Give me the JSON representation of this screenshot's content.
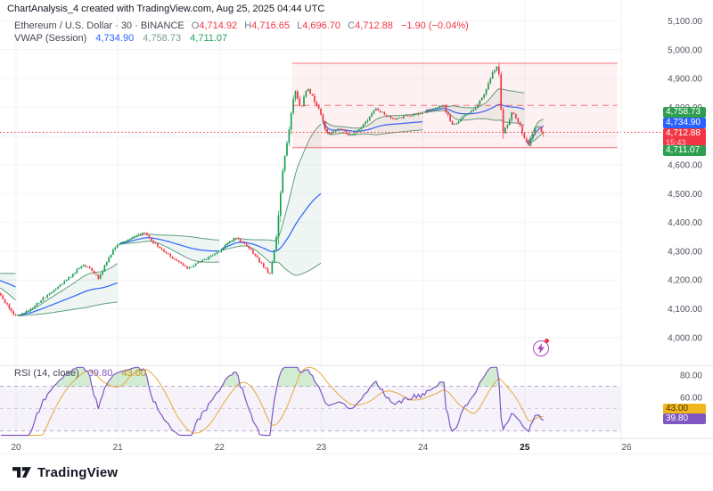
{
  "header": {
    "title": "ChartAnalysis_4 created with TradingView.com, Aug 25, 2025 04:44 UTC"
  },
  "legend": {
    "series": "Ethereum / U.S. Dollar · 30 · BINANCE",
    "o_label": "O",
    "o": "4,714.92",
    "h_label": "H",
    "h": "4,716.65",
    "l_label": "L",
    "l": "4,696.70",
    "c_label": "C",
    "c": "4,712.88",
    "change": "−1.90 (−0.04%)",
    "vwap_name": "VWAP (Session)",
    "vwap_value": "4,734.90",
    "vwap_upper": "4,758.73",
    "vwap_lower": "4,711.07"
  },
  "rsi_legend": {
    "name": "RSI (14, close)",
    "value": "39.80",
    "ma": "43.00"
  },
  "price_scale": {
    "badges": {
      "upper": "4,758.73",
      "vwap": "4,734.90",
      "last": "4,712.88",
      "countdown": "15:43",
      "lower": "4,711.07"
    }
  },
  "rsi_scale": {
    "badges": {
      "ma": "43.00",
      "value": "39.80"
    }
  },
  "footer": {
    "brand": "TradingView"
  },
  "colors": {
    "up": "#18a056",
    "down": "#f23645",
    "vwap": "#2962ff",
    "band": "#5f9e7f",
    "band_fill": "rgba(95,158,127,0.10)",
    "box_fill": "rgba(242,54,69,0.07)",
    "box_line": "rgba(242,54,69,0.50)",
    "price_line": "#f23645",
    "grid": "#f0f3fa",
    "separator": "#e0e3eb",
    "axis_text": "#50535e",
    "rsi": "#7e57c2",
    "rsi_ma": "#e8a83d",
    "rsi_band_fill": "rgba(126,87,194,0.08)",
    "rsi_level": "rgba(128,110,180,0.55)",
    "overbought_fill": "rgba(76,175,80,0.25)"
  },
  "chart_data": {
    "type": "candlestick",
    "title": "Ethereum / U.S. Dollar",
    "exchange": "BINANCE",
    "interval_minutes": 30,
    "indicators": [
      "VWAP (Session)",
      "RSI (14, close)"
    ],
    "visible_start_day": 19.842,
    "warmup_start_day": 19.35,
    "end_day": 25.197,
    "price_ylim": [
      3903,
      5173
    ],
    "rsi_ylim": [
      24.8,
      88.8
    ],
    "price_keyframes": [
      [
        19.4,
        4235
      ],
      [
        19.55,
        4210
      ],
      [
        19.7,
        4185
      ],
      [
        19.84,
        4160
      ],
      [
        19.93,
        4115
      ],
      [
        20.0,
        4075
      ],
      [
        20.1,
        4082
      ],
      [
        20.25,
        4125
      ],
      [
        20.4,
        4170
      ],
      [
        20.55,
        4210
      ],
      [
        20.68,
        4255
      ],
      [
        20.76,
        4235
      ],
      [
        20.83,
        4205
      ],
      [
        20.92,
        4270
      ],
      [
        21.0,
        4320
      ],
      [
        21.15,
        4345
      ],
      [
        21.28,
        4365
      ],
      [
        21.4,
        4320
      ],
      [
        21.55,
        4280
      ],
      [
        21.7,
        4240
      ],
      [
        21.82,
        4262
      ],
      [
        21.95,
        4285
      ],
      [
        22.05,
        4310
      ],
      [
        22.18,
        4350
      ],
      [
        22.32,
        4305
      ],
      [
        22.45,
        4248
      ],
      [
        22.52,
        4218
      ],
      [
        22.58,
        4350
      ],
      [
        22.64,
        4580
      ],
      [
        22.7,
        4720
      ],
      [
        22.76,
        4862
      ],
      [
        22.82,
        4795
      ],
      [
        22.88,
        4868
      ],
      [
        22.94,
        4832
      ],
      [
        23.0,
        4790
      ],
      [
        23.08,
        4706
      ],
      [
        23.2,
        4726
      ],
      [
        23.32,
        4700
      ],
      [
        23.45,
        4745
      ],
      [
        23.55,
        4798
      ],
      [
        23.63,
        4778
      ],
      [
        23.73,
        4756
      ],
      [
        23.86,
        4770
      ],
      [
        24.0,
        4780
      ],
      [
        24.12,
        4796
      ],
      [
        24.22,
        4806
      ],
      [
        24.31,
        4737
      ],
      [
        24.42,
        4768
      ],
      [
        24.52,
        4792
      ],
      [
        24.62,
        4844
      ],
      [
        24.7,
        4916
      ],
      [
        24.76,
        4949
      ],
      [
        24.8,
        4712
      ],
      [
        24.86,
        4746
      ],
      [
        24.9,
        4786
      ],
      [
        24.96,
        4748
      ],
      [
        25.02,
        4692
      ],
      [
        25.06,
        4668
      ],
      [
        25.12,
        4724
      ],
      [
        25.16,
        4736
      ],
      [
        25.197,
        4712.88
      ]
    ],
    "last_bar": {
      "open": 4714.92,
      "high": 4716.65,
      "low": 4696.7,
      "close": 4712.88,
      "change": -1.9,
      "change_pct": -0.04
    },
    "vwap_session": {
      "vwap": 4734.9,
      "upper": 4758.73,
      "lower": 4711.07
    },
    "rsi_current": {
      "period": 14,
      "value": 39.8,
      "ma": 43.0
    },
    "box": {
      "start_day": 22.715,
      "end_day": 25.91,
      "top": 4953,
      "bottom": 4660
    },
    "current_price": 4712.88,
    "price_ticks": [
      {
        "value": 5100,
        "label": "5,100.00"
      },
      {
        "value": 5000,
        "label": "5,000.00"
      },
      {
        "value": 4900,
        "label": "4,900.00"
      },
      {
        "value": 4800,
        "label": "4,800.00"
      },
      {
        "value": 4700,
        "label": "4,700.00"
      },
      {
        "value": 4600,
        "label": "4,600.00"
      },
      {
        "value": 4500,
        "label": "4,500.00"
      },
      {
        "value": 4400,
        "label": "4,400.00"
      },
      {
        "value": 4300,
        "label": "4,300.00"
      },
      {
        "value": 4200,
        "label": "4,200.00"
      },
      {
        "value": 4100,
        "label": "4,100.00"
      },
      {
        "value": 4000,
        "label": "4,000.00"
      }
    ],
    "rsi_ticks": [
      {
        "value": 80,
        "label": "80.00"
      },
      {
        "value": 60,
        "label": "60.00"
      }
    ],
    "rsi_levels": [
      70,
      50,
      30
    ],
    "time_ticks": [
      {
        "value": 20,
        "label": "20"
      },
      {
        "value": 21,
        "label": "21"
      },
      {
        "value": 22,
        "label": "22"
      },
      {
        "value": 23,
        "label": "23"
      },
      {
        "value": 24,
        "label": "24"
      },
      {
        "value": 25,
        "label": "25",
        "bold": true
      },
      {
        "value": 26,
        "label": "26"
      }
    ]
  }
}
